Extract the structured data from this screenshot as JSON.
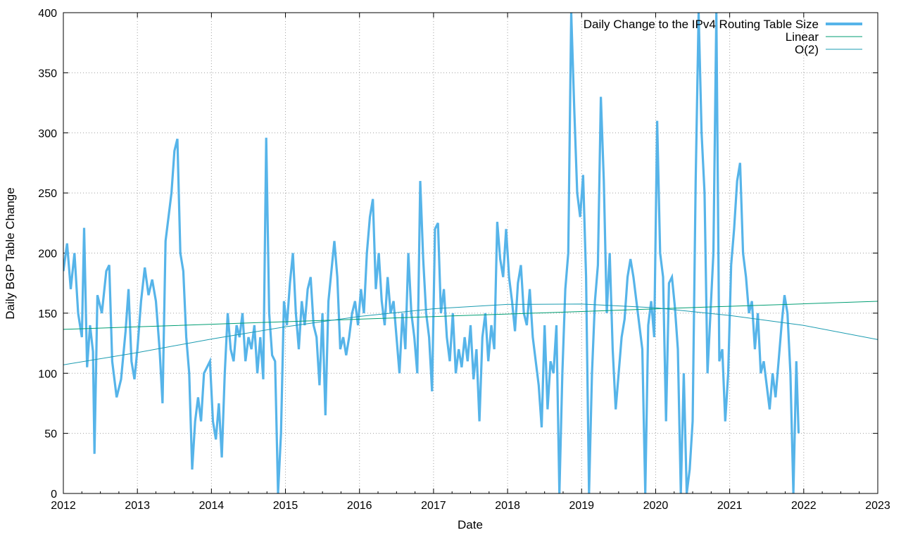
{
  "chart_data": {
    "type": "line",
    "xlabel": "Date",
    "ylabel": "Daily BGP Table Change",
    "xlim": [
      2012,
      2023
    ],
    "ylim": [
      0,
      400
    ],
    "x_ticks": [
      "2012",
      "2013",
      "2014",
      "2015",
      "2016",
      "2017",
      "2018",
      "2019",
      "2020",
      "2021",
      "2022",
      "2023"
    ],
    "y_ticks": [
      "0",
      "50",
      "100",
      "150",
      "200",
      "250",
      "300",
      "350",
      "400"
    ],
    "grid": true,
    "legend_position": "top-right",
    "colors": {
      "daily": "#56b4e9",
      "linear": "#009e73",
      "o2": "#1a9bb0",
      "grid": "#a0a0a0"
    },
    "series": [
      {
        "name": "Daily Change to the IPv4 Routing Table Size",
        "style": "thick",
        "points": [
          [
            2012.0,
            185
          ],
          [
            2012.05,
            208
          ],
          [
            2012.1,
            170
          ],
          [
            2012.15,
            200
          ],
          [
            2012.2,
            150
          ],
          [
            2012.25,
            130
          ],
          [
            2012.28,
            221
          ],
          [
            2012.32,
            105
          ],
          [
            2012.36,
            140
          ],
          [
            2012.4,
            118
          ],
          [
            2012.42,
            33
          ],
          [
            2012.46,
            165
          ],
          [
            2012.52,
            150
          ],
          [
            2012.58,
            185
          ],
          [
            2012.62,
            190
          ],
          [
            2012.66,
            110
          ],
          [
            2012.72,
            80
          ],
          [
            2012.78,
            95
          ],
          [
            2012.84,
            135
          ],
          [
            2012.88,
            170
          ],
          [
            2012.92,
            110
          ],
          [
            2012.96,
            95
          ],
          [
            2013.0,
            120
          ],
          [
            2013.05,
            160
          ],
          [
            2013.1,
            188
          ],
          [
            2013.15,
            165
          ],
          [
            2013.2,
            178
          ],
          [
            2013.25,
            160
          ],
          [
            2013.3,
            120
          ],
          [
            2013.34,
            75
          ],
          [
            2013.38,
            210
          ],
          [
            2013.42,
            230
          ],
          [
            2013.46,
            250
          ],
          [
            2013.5,
            285
          ],
          [
            2013.54,
            295
          ],
          [
            2013.58,
            200
          ],
          [
            2013.62,
            185
          ],
          [
            2013.66,
            130
          ],
          [
            2013.7,
            100
          ],
          [
            2013.74,
            20
          ],
          [
            2013.78,
            60
          ],
          [
            2013.82,
            80
          ],
          [
            2013.86,
            60
          ],
          [
            2013.9,
            100
          ],
          [
            2013.94,
            105
          ],
          [
            2013.98,
            110
          ],
          [
            2014.02,
            60
          ],
          [
            2014.06,
            45
          ],
          [
            2014.1,
            75
          ],
          [
            2014.14,
            30
          ],
          [
            2014.18,
            100
          ],
          [
            2014.22,
            150
          ],
          [
            2014.26,
            120
          ],
          [
            2014.3,
            110
          ],
          [
            2014.34,
            140
          ],
          [
            2014.38,
            130
          ],
          [
            2014.42,
            150
          ],
          [
            2014.46,
            110
          ],
          [
            2014.5,
            130
          ],
          [
            2014.54,
            120
          ],
          [
            2014.58,
            140
          ],
          [
            2014.62,
            100
          ],
          [
            2014.66,
            130
          ],
          [
            2014.7,
            95
          ],
          [
            2014.74,
            296
          ],
          [
            2014.78,
            150
          ],
          [
            2014.82,
            115
          ],
          [
            2014.86,
            110
          ],
          [
            2014.9,
            0
          ],
          [
            2014.94,
            50
          ],
          [
            2014.98,
            160
          ],
          [
            2015.02,
            140
          ],
          [
            2015.06,
            175
          ],
          [
            2015.1,
            200
          ],
          [
            2015.14,
            150
          ],
          [
            2015.18,
            120
          ],
          [
            2015.22,
            160
          ],
          [
            2015.26,
            140
          ],
          [
            2015.3,
            170
          ],
          [
            2015.34,
            180
          ],
          [
            2015.38,
            140
          ],
          [
            2015.42,
            130
          ],
          [
            2015.46,
            90
          ],
          [
            2015.5,
            150
          ],
          [
            2015.54,
            65
          ],
          [
            2015.58,
            160
          ],
          [
            2015.62,
            185
          ],
          [
            2015.66,
            210
          ],
          [
            2015.7,
            180
          ],
          [
            2015.74,
            120
          ],
          [
            2015.78,
            130
          ],
          [
            2015.82,
            115
          ],
          [
            2015.86,
            130
          ],
          [
            2015.9,
            150
          ],
          [
            2015.94,
            160
          ],
          [
            2015.98,
            140
          ],
          [
            2016.02,
            170
          ],
          [
            2016.06,
            150
          ],
          [
            2016.1,
            200
          ],
          [
            2016.14,
            230
          ],
          [
            2016.18,
            245
          ],
          [
            2016.22,
            170
          ],
          [
            2016.26,
            200
          ],
          [
            2016.3,
            160
          ],
          [
            2016.34,
            140
          ],
          [
            2016.38,
            180
          ],
          [
            2016.42,
            150
          ],
          [
            2016.46,
            160
          ],
          [
            2016.5,
            130
          ],
          [
            2016.54,
            100
          ],
          [
            2016.58,
            150
          ],
          [
            2016.62,
            120
          ],
          [
            2016.66,
            200
          ],
          [
            2016.7,
            150
          ],
          [
            2016.74,
            130
          ],
          [
            2016.78,
            100
          ],
          [
            2016.82,
            260
          ],
          [
            2016.86,
            195
          ],
          [
            2016.9,
            150
          ],
          [
            2016.94,
            130
          ],
          [
            2016.98,
            85
          ],
          [
            2017.02,
            220
          ],
          [
            2017.06,
            225
          ],
          [
            2017.1,
            150
          ],
          [
            2017.14,
            170
          ],
          [
            2017.18,
            130
          ],
          [
            2017.22,
            110
          ],
          [
            2017.26,
            150
          ],
          [
            2017.3,
            100
          ],
          [
            2017.34,
            120
          ],
          [
            2017.38,
            105
          ],
          [
            2017.42,
            130
          ],
          [
            2017.46,
            110
          ],
          [
            2017.5,
            140
          ],
          [
            2017.54,
            95
          ],
          [
            2017.58,
            120
          ],
          [
            2017.62,
            60
          ],
          [
            2017.66,
            130
          ],
          [
            2017.7,
            150
          ],
          [
            2017.74,
            110
          ],
          [
            2017.78,
            140
          ],
          [
            2017.82,
            120
          ],
          [
            2017.86,
            226
          ],
          [
            2017.9,
            195
          ],
          [
            2017.94,
            180
          ],
          [
            2017.98,
            220
          ],
          [
            2018.02,
            180
          ],
          [
            2018.06,
            160
          ],
          [
            2018.1,
            135
          ],
          [
            2018.14,
            175
          ],
          [
            2018.18,
            190
          ],
          [
            2018.22,
            150
          ],
          [
            2018.26,
            140
          ],
          [
            2018.3,
            170
          ],
          [
            2018.34,
            130
          ],
          [
            2018.38,
            110
          ],
          [
            2018.42,
            90
          ],
          [
            2018.46,
            55
          ],
          [
            2018.5,
            140
          ],
          [
            2018.54,
            70
          ],
          [
            2018.58,
            110
          ],
          [
            2018.62,
            100
          ],
          [
            2018.66,
            140
          ],
          [
            2018.7,
            0
          ],
          [
            2018.74,
            100
          ],
          [
            2018.78,
            170
          ],
          [
            2018.82,
            200
          ],
          [
            2018.86,
            400
          ],
          [
            2018.9,
            320
          ],
          [
            2018.94,
            250
          ],
          [
            2018.98,
            230
          ],
          [
            2019.02,
            265
          ],
          [
            2019.06,
            180
          ],
          [
            2019.1,
            0
          ],
          [
            2019.14,
            100
          ],
          [
            2019.18,
            160
          ],
          [
            2019.22,
            190
          ],
          [
            2019.26,
            330
          ],
          [
            2019.3,
            260
          ],
          [
            2019.34,
            150
          ],
          [
            2019.38,
            200
          ],
          [
            2019.42,
            120
          ],
          [
            2019.46,
            70
          ],
          [
            2019.5,
            100
          ],
          [
            2019.54,
            130
          ],
          [
            2019.58,
            145
          ],
          [
            2019.62,
            180
          ],
          [
            2019.66,
            195
          ],
          [
            2019.7,
            180
          ],
          [
            2019.74,
            160
          ],
          [
            2019.78,
            140
          ],
          [
            2019.82,
            120
          ],
          [
            2019.86,
            0
          ],
          [
            2019.9,
            140
          ],
          [
            2019.94,
            160
          ],
          [
            2019.98,
            130
          ],
          [
            2020.02,
            310
          ],
          [
            2020.06,
            200
          ],
          [
            2020.1,
            180
          ],
          [
            2020.14,
            60
          ],
          [
            2020.18,
            175
          ],
          [
            2020.22,
            180
          ],
          [
            2020.26,
            155
          ],
          [
            2020.3,
            120
          ],
          [
            2020.34,
            0
          ],
          [
            2020.38,
            100
          ],
          [
            2020.42,
            0
          ],
          [
            2020.46,
            20
          ],
          [
            2020.5,
            60
          ],
          [
            2020.54,
            260
          ],
          [
            2020.58,
            400
          ],
          [
            2020.62,
            300
          ],
          [
            2020.66,
            250
          ],
          [
            2020.7,
            100
          ],
          [
            2020.74,
            150
          ],
          [
            2020.78,
            200
          ],
          [
            2020.82,
            400
          ],
          [
            2020.86,
            110
          ],
          [
            2020.9,
            120
          ],
          [
            2020.94,
            60
          ],
          [
            2020.98,
            100
          ],
          [
            2021.02,
            190
          ],
          [
            2021.06,
            220
          ],
          [
            2021.1,
            260
          ],
          [
            2021.14,
            275
          ],
          [
            2021.18,
            200
          ],
          [
            2021.22,
            180
          ],
          [
            2021.26,
            150
          ],
          [
            2021.3,
            160
          ],
          [
            2021.34,
            120
          ],
          [
            2021.38,
            150
          ],
          [
            2021.42,
            100
          ],
          [
            2021.46,
            110
          ],
          [
            2021.5,
            90
          ],
          [
            2021.54,
            70
          ],
          [
            2021.58,
            100
          ],
          [
            2021.62,
            80
          ],
          [
            2021.66,
            110
          ],
          [
            2021.7,
            140
          ],
          [
            2021.74,
            165
          ],
          [
            2021.78,
            150
          ],
          [
            2021.82,
            100
          ],
          [
            2021.86,
            0
          ],
          [
            2021.9,
            110
          ],
          [
            2021.93,
            50
          ]
        ]
      },
      {
        "name": "Linear",
        "style": "thin",
        "points": [
          [
            2012.0,
            136.5
          ],
          [
            2013.0,
            138.6
          ],
          [
            2014.0,
            140.8
          ],
          [
            2015.0,
            142.9
          ],
          [
            2016.0,
            145.0
          ],
          [
            2017.0,
            147.2
          ],
          [
            2018.0,
            149.3
          ],
          [
            2019.0,
            151.4
          ],
          [
            2020.0,
            153.6
          ],
          [
            2021.0,
            155.7
          ],
          [
            2022.0,
            157.8
          ],
          [
            2023.0,
            159.9
          ]
        ]
      },
      {
        "name": "O(2)",
        "style": "thin",
        "points": [
          [
            2012.0,
            107.0
          ],
          [
            2013.0,
            117.2
          ],
          [
            2014.0,
            128.5
          ],
          [
            2015.0,
            138.7
          ],
          [
            2016.0,
            147.3
          ],
          [
            2017.0,
            153.7
          ],
          [
            2018.0,
            157.3
          ],
          [
            2019.0,
            157.6
          ],
          [
            2020.0,
            154.5
          ],
          [
            2021.0,
            148.1
          ],
          [
            2022.0,
            139.8
          ],
          [
            2023.0,
            128.0
          ]
        ]
      }
    ]
  }
}
